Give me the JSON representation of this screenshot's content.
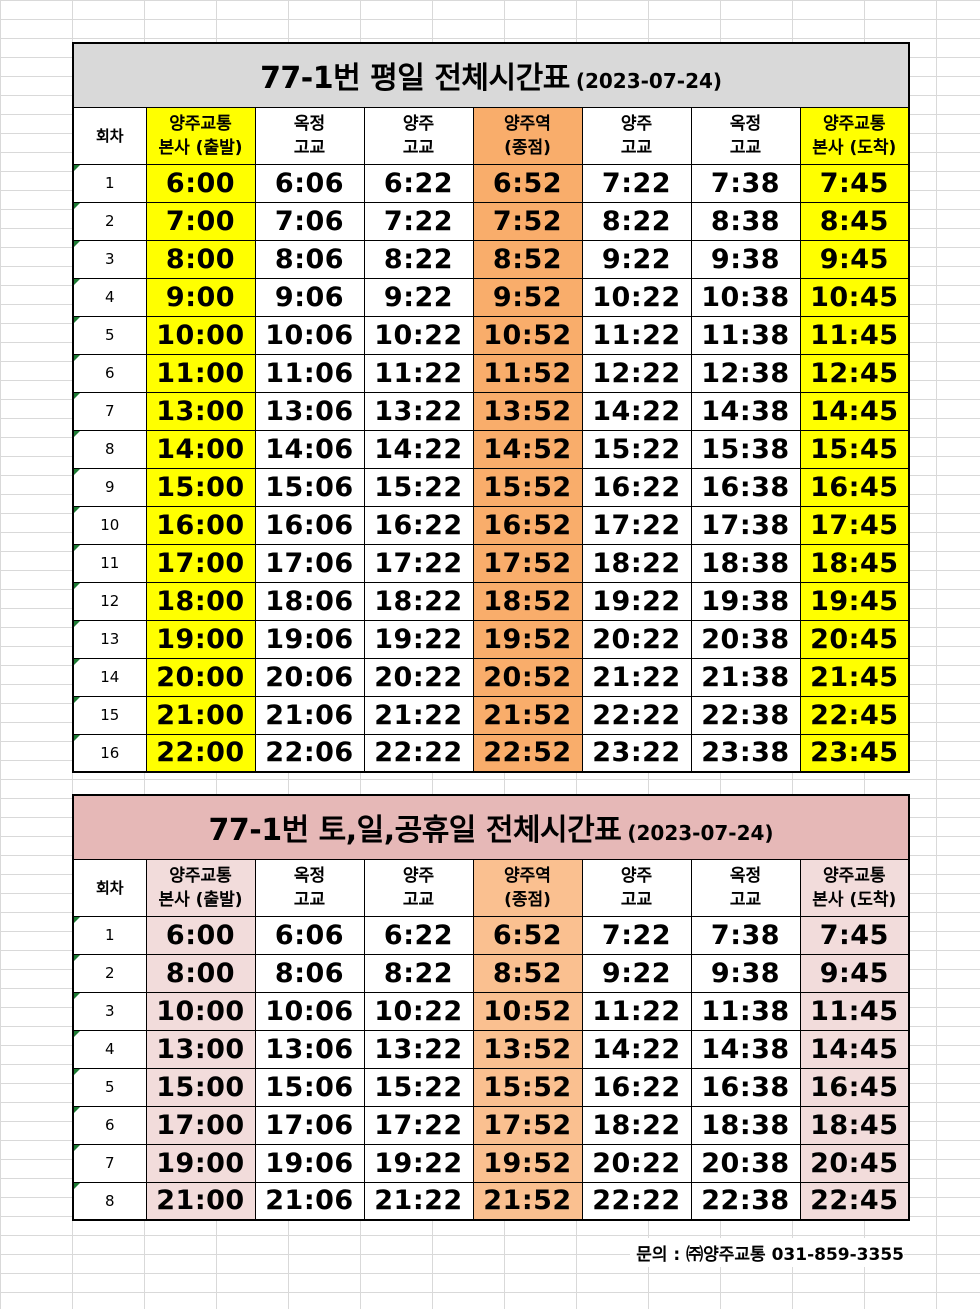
{
  "colors": {
    "weekday_title_bg": "#d9d9d9",
    "weekday_endpoint": "#ffff00",
    "weekday_terminal": "#f9ad6b",
    "weekend_title_bg": "#e6b8b7",
    "weekend_endpoint": "#f2dcdb",
    "weekend_terminal": "#fac090"
  },
  "weekday": {
    "title": "77-1번 평일 전체시간표",
    "date": "(2023-07-24)",
    "round_header": "회차",
    "headers": [
      {
        "l1": "양주교통",
        "l2": "본사 (출발)"
      },
      {
        "l1": "옥정",
        "l2": "고교"
      },
      {
        "l1": "양주",
        "l2": "고교"
      },
      {
        "l1": "양주역",
        "l2": "(종점)"
      },
      {
        "l1": "양주",
        "l2": "고교"
      },
      {
        "l1": "옥정",
        "l2": "고교"
      },
      {
        "l1": "양주교통",
        "l2": "본사 (도착)"
      }
    ],
    "rows": [
      [
        "1",
        "6:00",
        "6:06",
        "6:22",
        "6:52",
        "7:22",
        "7:38",
        "7:45"
      ],
      [
        "2",
        "7:00",
        "7:06",
        "7:22",
        "7:52",
        "8:22",
        "8:38",
        "8:45"
      ],
      [
        "3",
        "8:00",
        "8:06",
        "8:22",
        "8:52",
        "9:22",
        "9:38",
        "9:45"
      ],
      [
        "4",
        "9:00",
        "9:06",
        "9:22",
        "9:52",
        "10:22",
        "10:38",
        "10:45"
      ],
      [
        "5",
        "10:00",
        "10:06",
        "10:22",
        "10:52",
        "11:22",
        "11:38",
        "11:45"
      ],
      [
        "6",
        "11:00",
        "11:06",
        "11:22",
        "11:52",
        "12:22",
        "12:38",
        "12:45"
      ],
      [
        "7",
        "13:00",
        "13:06",
        "13:22",
        "13:52",
        "14:22",
        "14:38",
        "14:45"
      ],
      [
        "8",
        "14:00",
        "14:06",
        "14:22",
        "14:52",
        "15:22",
        "15:38",
        "15:45"
      ],
      [
        "9",
        "15:00",
        "15:06",
        "15:22",
        "15:52",
        "16:22",
        "16:38",
        "16:45"
      ],
      [
        "10",
        "16:00",
        "16:06",
        "16:22",
        "16:52",
        "17:22",
        "17:38",
        "17:45"
      ],
      [
        "11",
        "17:00",
        "17:06",
        "17:22",
        "17:52",
        "18:22",
        "18:38",
        "18:45"
      ],
      [
        "12",
        "18:00",
        "18:06",
        "18:22",
        "18:52",
        "19:22",
        "19:38",
        "19:45"
      ],
      [
        "13",
        "19:00",
        "19:06",
        "19:22",
        "19:52",
        "20:22",
        "20:38",
        "20:45"
      ],
      [
        "14",
        "20:00",
        "20:06",
        "20:22",
        "20:52",
        "21:22",
        "21:38",
        "21:45"
      ],
      [
        "15",
        "21:00",
        "21:06",
        "21:22",
        "21:52",
        "22:22",
        "22:38",
        "22:45"
      ],
      [
        "16",
        "22:00",
        "22:06",
        "22:22",
        "22:52",
        "23:22",
        "23:38",
        "23:45"
      ]
    ]
  },
  "weekend": {
    "title": "77-1번 토,일,공휴일 전체시간표",
    "date": "(2023-07-24)",
    "round_header": "회차",
    "headers": [
      {
        "l1": "양주교통",
        "l2": "본사 (출발)"
      },
      {
        "l1": "옥정",
        "l2": "고교"
      },
      {
        "l1": "양주",
        "l2": "고교"
      },
      {
        "l1": "양주역",
        "l2": "(종점)"
      },
      {
        "l1": "양주",
        "l2": "고교"
      },
      {
        "l1": "옥정",
        "l2": "고교"
      },
      {
        "l1": "양주교통",
        "l2": "본사 (도착)"
      }
    ],
    "rows": [
      [
        "1",
        "6:00",
        "6:06",
        "6:22",
        "6:52",
        "7:22",
        "7:38",
        "7:45"
      ],
      [
        "2",
        "8:00",
        "8:06",
        "8:22",
        "8:52",
        "9:22",
        "9:38",
        "9:45"
      ],
      [
        "3",
        "10:00",
        "10:06",
        "10:22",
        "10:52",
        "11:22",
        "11:38",
        "11:45"
      ],
      [
        "4",
        "13:00",
        "13:06",
        "13:22",
        "13:52",
        "14:22",
        "14:38",
        "14:45"
      ],
      [
        "5",
        "15:00",
        "15:06",
        "15:22",
        "15:52",
        "16:22",
        "16:38",
        "16:45"
      ],
      [
        "6",
        "17:00",
        "17:06",
        "17:22",
        "17:52",
        "18:22",
        "18:38",
        "18:45"
      ],
      [
        "7",
        "19:00",
        "19:06",
        "19:22",
        "19:52",
        "20:22",
        "20:38",
        "20:45"
      ],
      [
        "8",
        "21:00",
        "21:06",
        "21:22",
        "21:52",
        "22:22",
        "22:38",
        "22:45"
      ]
    ]
  },
  "footer": {
    "contact": "문의 : ㈜양주교통 031-859-3355"
  }
}
